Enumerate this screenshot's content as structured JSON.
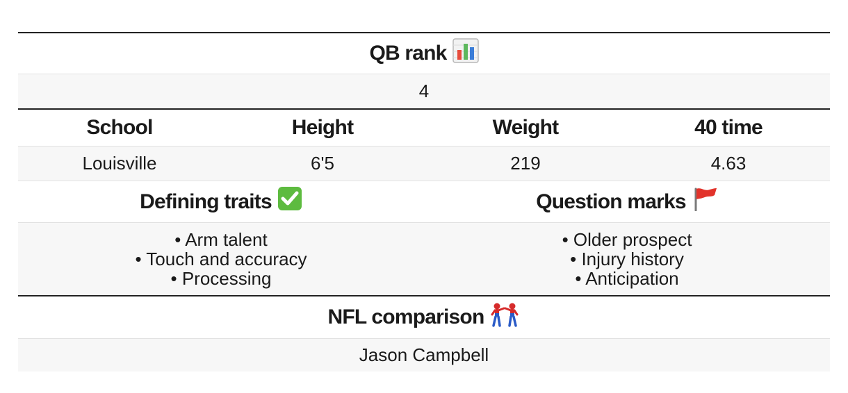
{
  "rank": {
    "title": "QB rank",
    "title_icon": "bar-chart-icon",
    "value": "4"
  },
  "stats": {
    "headers": [
      "School",
      "Height",
      "Weight",
      "40 time"
    ],
    "values": [
      "Louisville",
      "6'5",
      "219",
      "4.63"
    ]
  },
  "traits": {
    "defining_title": "Defining traits",
    "defining_icon": "check-mark-icon",
    "defining": [
      "• Arm talent",
      "• Touch and accuracy",
      "• Processing"
    ],
    "question_title": "Question marks",
    "question_icon": "red-flag-icon",
    "question": [
      "• Older prospect",
      "• Injury history",
      "• Anticipation"
    ]
  },
  "comparison": {
    "title": "NFL comparison",
    "title_icon": "spiderman-pointing-icon",
    "value": "Jason Campbell"
  },
  "colors": {
    "rule": "#222222",
    "row_shade": "#f7f7f7",
    "divider": "#e2e2e2"
  }
}
